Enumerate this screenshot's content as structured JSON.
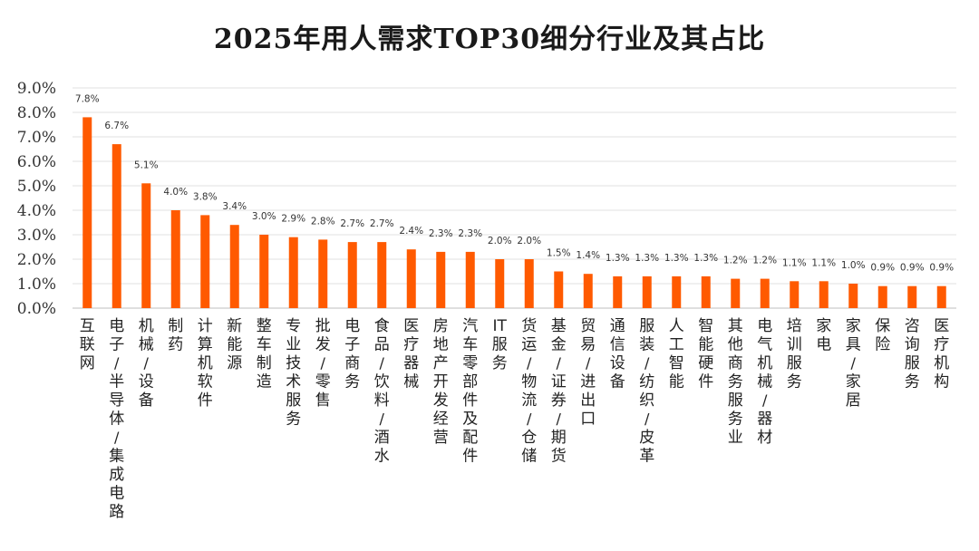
{
  "chart_data": {
    "type": "bar",
    "title": "2025年用人需求TOP30细分行业及其占比",
    "xlabel": "",
    "ylabel": "",
    "ylim": [
      0,
      9.0
    ],
    "y_ticks": [
      "0.0%",
      "1.0%",
      "2.0%",
      "3.0%",
      "4.0%",
      "5.0%",
      "6.0%",
      "7.0%",
      "8.0%",
      "9.0%"
    ],
    "grid": true,
    "legend": "none",
    "bar_color": "#FF5A00",
    "categories": [
      "互联网",
      "电子/半导体/集成电路",
      "机械/设备",
      "制药",
      "计算机软件",
      "新能源",
      "整车制造",
      "专业技术服务",
      "批发/零售",
      "电子商务",
      "食品/饮料/酒水",
      "医疗器械",
      "房地产开发经营",
      "汽车零部件及配件",
      "IT服务",
      "货运/物流/仓储",
      "基金/证券/期货",
      "贸易/进出口",
      "通信设备",
      "服装/纺织/皮革",
      "人工智能",
      "智能硬件",
      "其他商务服务业",
      "电气机械/器材",
      "培训服务",
      "家电",
      "家具/家居",
      "保险",
      "咨询服务",
      "医疗机构"
    ],
    "values": [
      7.8,
      6.7,
      5.1,
      4.0,
      3.8,
      3.4,
      3.0,
      2.9,
      2.8,
      2.7,
      2.7,
      2.4,
      2.3,
      2.3,
      2.0,
      2.0,
      1.5,
      1.4,
      1.3,
      1.3,
      1.3,
      1.3,
      1.2,
      1.2,
      1.1,
      1.1,
      1.0,
      0.9,
      0.9,
      0.9
    ],
    "data_labels": [
      "7.8%",
      "6.7%",
      "5.1%",
      "4.0%",
      "3.8%",
      "3.4%",
      "3.0%",
      "2.9%",
      "2.8%",
      "2.7%",
      "2.7%",
      "2.4%",
      "2.3%",
      "2.3%",
      "2.0%",
      "2.0%",
      "1.5%",
      "1.4%",
      "1.3%",
      "1.3%",
      "1.3%",
      "1.3%",
      "1.2%",
      "1.2%",
      "1.1%",
      "1.1%",
      "1.0%",
      "0.9%",
      "0.9%",
      "0.9%"
    ]
  }
}
